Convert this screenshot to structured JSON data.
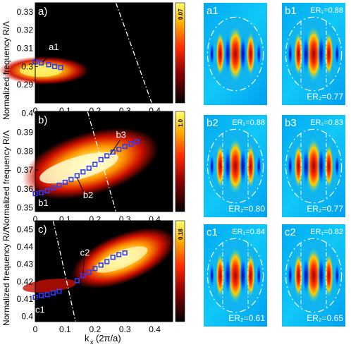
{
  "figure": {
    "ylabel": "Normalized frequency  R/Λ",
    "xlabel_main": "k",
    "xlabel_sub": "x",
    "xlabel_unit": "(2π/a)"
  },
  "chart_data": [
    {
      "type": "heatmap",
      "panel_label": "a)",
      "xlabel": "k_x (2π/a)",
      "ylabel": "Normalized frequency R/Λ",
      "xlim": [
        0,
        0.46
      ],
      "ylim": [
        0.28,
        0.335
      ],
      "xticks": [
        "0",
        "0.1",
        "0.2",
        "0.3",
        "0.4"
      ],
      "yticks": [
        "0.29",
        "0.3",
        "0.31",
        "0.32",
        "0.33"
      ],
      "colorbar_max": "0.07",
      "mode_markers": {
        "x": [
          0.0,
          0.02,
          0.045,
          0.065,
          0.085
        ],
        "y": [
          0.3025,
          0.302,
          0.301,
          0.3,
          0.2995
        ]
      },
      "light_line": {
        "x": [
          0.27,
          0.39
        ],
        "y": [
          0.335,
          0.28
        ]
      },
      "annotations": [
        {
          "text": "a1",
          "x": 0.045,
          "y": 0.309,
          "target_x": 0.025,
          "target_y": 0.3025
        }
      ]
    },
    {
      "type": "heatmap",
      "panel_label": "b)",
      "xlabel": "k_x (2π/a)",
      "ylabel": "Normalized frequency R/Λ",
      "xlim": [
        0,
        0.46
      ],
      "ylim": [
        0.348,
        0.401
      ],
      "xticks": [
        "0",
        "0.1",
        "0.2",
        "0.3",
        "0.4"
      ],
      "yticks": [
        "0.35",
        "0.36",
        "0.37",
        "0.38",
        "0.39",
        "0.4"
      ],
      "colorbar_max": "1.0",
      "mode_markers": {
        "x": [
          0.0,
          0.02,
          0.04,
          0.06,
          0.08,
          0.1,
          0.12,
          0.14,
          0.16,
          0.18,
          0.2,
          0.22,
          0.24,
          0.26,
          0.28,
          0.3,
          0.32,
          0.34
        ],
        "y": [
          0.3575,
          0.358,
          0.359,
          0.3605,
          0.362,
          0.3635,
          0.365,
          0.367,
          0.369,
          0.371,
          0.373,
          0.3755,
          0.3775,
          0.3795,
          0.381,
          0.3825,
          0.3838,
          0.385
        ]
      },
      "light_line": {
        "x": [
          0.175,
          0.27
        ],
        "y": [
          0.401,
          0.348
        ]
      },
      "annotations": [
        {
          "text": "b1",
          "x": 0.01,
          "y": 0.351,
          "target_x": 0.02,
          "target_y": 0.357
        },
        {
          "text": "b2",
          "x": 0.16,
          "y": 0.355,
          "target_x": 0.14,
          "target_y": 0.366
        },
        {
          "text": "b3",
          "x": 0.27,
          "y": 0.387,
          "target_x": 0.25,
          "target_y": 0.378
        }
      ]
    },
    {
      "type": "heatmap",
      "panel_label": "c)",
      "xlabel": "k_x (2π/a)",
      "ylabel": "Normalized frequency R/Λ",
      "xlim": [
        0,
        0.46
      ],
      "ylim": [
        0.397,
        0.455
      ],
      "xticks": [
        "0",
        "0.1",
        "0.2",
        "0.3",
        "0.4"
      ],
      "yticks": [
        "0.4",
        "0.41",
        "0.42",
        "0.43",
        "0.44",
        "0.45"
      ],
      "colorbar_max": "0.18",
      "mode_markers": {
        "x": [
          0.0,
          0.02,
          0.04,
          0.06,
          0.08,
          0.14,
          0.16,
          0.18,
          0.2,
          0.22,
          0.24,
          0.26,
          0.28,
          0.3
        ],
        "y": [
          0.411,
          0.412,
          0.4125,
          0.4135,
          0.4145,
          0.4205,
          0.4235,
          0.4255,
          0.4275,
          0.4295,
          0.4315,
          0.434,
          0.4355,
          0.4365
        ]
      },
      "light_line": {
        "x": [
          0.06,
          0.135
        ],
        "y": [
          0.455,
          0.397
        ]
      },
      "annotations": [
        {
          "text": "c2",
          "x": 0.15,
          "y": 0.435,
          "target_x": 0.16,
          "target_y": 0.4245
        },
        {
          "text": "c1",
          "x": 0.0,
          "y": 0.402,
          "target_x": 0.015,
          "target_y": 0.409
        }
      ]
    }
  ],
  "mode_profiles": [
    {
      "label": "a1",
      "er1": "",
      "er2": ""
    },
    {
      "label": "b1",
      "er1": "ER₁=0.88",
      "er2": "ER₂=0.77"
    },
    {
      "label": "b2",
      "er1": "ER₁=0.88",
      "er2": "ER₂=0.80"
    },
    {
      "label": "b3",
      "er1": "ER₁=0.83",
      "er2": "ER₂=0.77"
    },
    {
      "label": "c1",
      "er1": "ER₁=0.84",
      "er2": "ER₂=0.61"
    },
    {
      "label": "c2",
      "er1": "ER₁=0.82",
      "er2": "ER₂=0.65"
    }
  ]
}
